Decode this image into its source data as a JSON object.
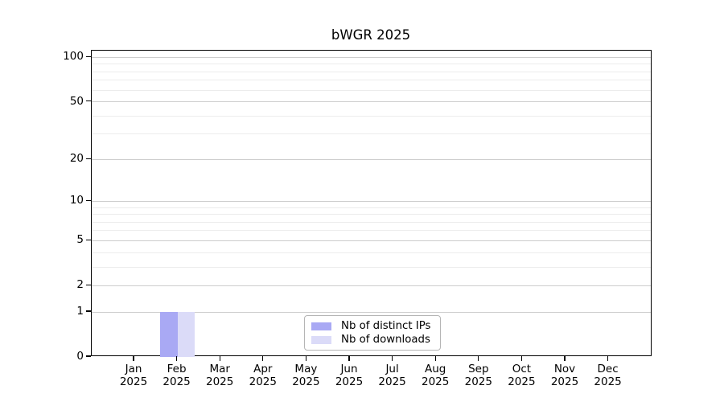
{
  "chart_data": {
    "type": "bar",
    "title": "bWGR 2025",
    "xlabel": "",
    "ylabel": "",
    "yscale": "log1p",
    "ylim": [
      0,
      111
    ],
    "grid": "horizontal",
    "y_ticks": [
      0,
      1,
      2,
      5,
      10,
      20,
      50,
      100
    ],
    "y_minor_ticks": [
      3,
      4,
      6,
      7,
      8,
      9,
      30,
      40,
      60,
      70,
      80,
      90
    ],
    "categories": [
      "Jan 2025",
      "Feb 2025",
      "Mar 2025",
      "Apr 2025",
      "May 2025",
      "Jun 2025",
      "Jul 2025",
      "Aug 2025",
      "Sep 2025",
      "Oct 2025",
      "Nov 2025",
      "Dec 2025"
    ],
    "series": [
      {
        "name": "Nb of distinct IPs",
        "color": "#a9a9f4",
        "values": [
          0,
          1,
          0,
          0,
          0,
          0,
          0,
          0,
          0,
          0,
          0,
          0
        ]
      },
      {
        "name": "Nb of downloads",
        "color": "#dbdbf8",
        "values": [
          0,
          1,
          0,
          0,
          0,
          0,
          0,
          0,
          0,
          0,
          0,
          0
        ]
      }
    ],
    "legend_position": "inside-bottom-center"
  }
}
